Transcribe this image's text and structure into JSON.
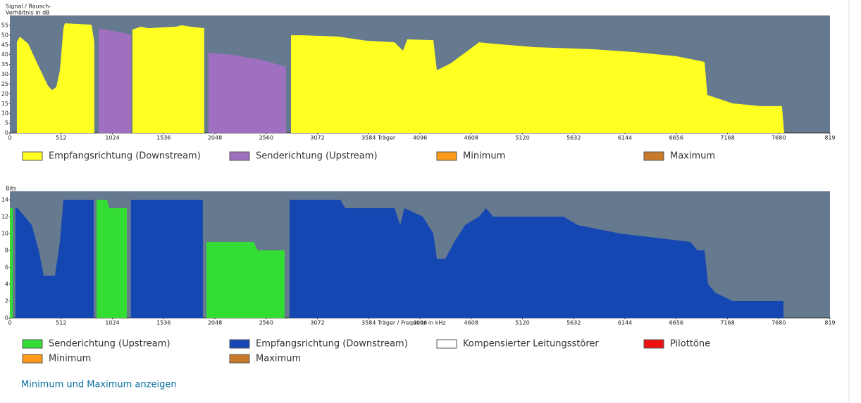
{
  "chart_data": [
    {
      "type": "area",
      "ylabel": [
        "Signal / Rausch-",
        "Verhältnis in dB"
      ],
      "xlabel": "Träger",
      "background": "#65798f",
      "xlim": [
        0,
        8192
      ],
      "xticks": [
        0,
        512,
        1024,
        1536,
        2048,
        2560,
        3072,
        3584,
        4096,
        4608,
        5120,
        5632,
        6144,
        6656,
        7168,
        7680,
        {
          "value": 8192,
          "label": "819"
        }
      ],
      "ylim": [
        0,
        60
      ],
      "yticks": [
        0,
        5,
        10,
        15,
        20,
        25,
        30,
        35,
        40,
        45,
        50,
        55
      ],
      "series": [
        {
          "name": "Empfangsrichtung (Downstream)",
          "color": "#ffff22",
          "x": [
            70,
            99,
            183,
            289,
            380,
            422,
            464,
            500,
            535,
            549,
            816,
            844,
            null,
            1224,
            1309,
            1379,
            1661,
            1717,
            1802,
            1942,
            null,
            2808,
            2927,
            3279,
            3561,
            3842,
            3927,
            3969,
            4230,
            4265,
            4405,
            4687,
            4827,
            5250,
            5813,
            6235,
            6657,
            6939,
            6967,
            7220,
            7501,
            7712,
            7734
          ],
          "values": [
            46.3,
            49.2,
            45.6,
            33.8,
            24.1,
            21.9,
            23.4,
            32,
            53.5,
            56,
            55.3,
            46.3,
            null,
            52.8,
            54.3,
            53.5,
            54.3,
            55,
            54.3,
            53.5,
            null,
            49.9,
            49.9,
            49.2,
            47.1,
            46.3,
            42,
            47.8,
            47.4,
            32,
            35.6,
            46.3,
            45.6,
            43.8,
            42.8,
            41.3,
            39.2,
            36.3,
            19.4,
            15.1,
            13.7,
            13.7,
            0
          ]
        },
        {
          "name": "Senderichtung (Upstream)",
          "color": "#a070c0",
          "x": [
            887,
            957,
            1168,
            1210,
            null,
            1984,
            2224,
            2505,
            2759
          ],
          "values": [
            53.5,
            52.8,
            50.7,
            49.9,
            null,
            41,
            39.9,
            37.4,
            33.8
          ]
        },
        {
          "name": "Minimum",
          "color": "#ff9a1a"
        },
        {
          "name": "Maximum",
          "color": "#c87a2a"
        }
      ]
    },
    {
      "type": "area",
      "ylabel": [
        "Bits"
      ],
      "xlabel": "Träger / Frequenz in kHz",
      "background": "#65798f",
      "xlim": [
        0,
        8192
      ],
      "xticks": [
        0,
        512,
        1024,
        1536,
        2048,
        2560,
        3072,
        3584,
        4096,
        4608,
        5120,
        5632,
        6144,
        6656,
        7168,
        7680,
        {
          "value": 8192,
          "label": "819"
        }
      ],
      "ylim": [
        0,
        15
      ],
      "yticks": [
        0,
        2,
        4,
        6,
        8,
        10,
        12,
        14
      ],
      "series": [
        {
          "name": "Senderichtung (Upstream)",
          "color": "#33dd33",
          "x": [
            0,
            28,
            null,
            866,
            971,
            992,
            1168,
            null,
            1963,
            1998,
            2435,
            2477,
            2744
          ],
          "values": [
            13,
            13,
            null,
            14,
            14,
            13,
            13,
            null,
            9,
            9,
            9,
            8,
            8
          ]
        },
        {
          "name": "Empfangsrichtung (Downstream)",
          "color": "#1547b3",
          "x": [
            56,
            77,
            148,
            218,
            289,
            338,
            380,
            450,
            500,
            535,
            570,
            816,
            837,
            null,
            1210,
            1928,
            null,
            2794,
            3300,
            3350,
            3842,
            3899,
            3941,
            4124,
            4230,
            4265,
            4349,
            4440,
            4546,
            4687,
            4757,
            4827,
            5531,
            5672,
            6094,
            6798,
            6868,
            6939,
            6974,
            7045,
            7220,
            7727
          ],
          "values": [
            13,
            13,
            12,
            11,
            8,
            5,
            5,
            5,
            9,
            14,
            14,
            14,
            14,
            null,
            14,
            14,
            null,
            14,
            14,
            13,
            13,
            11,
            13,
            12,
            10,
            7,
            7,
            9,
            11,
            12,
            13,
            12,
            12,
            11,
            10,
            9,
            8,
            8,
            4,
            3,
            2,
            2
          ]
        },
        {
          "name": "Kompensierter Leitungsstörer",
          "color": "#ffffff"
        },
        {
          "name": "Pilottöne",
          "color": "#ee1111"
        },
        {
          "name": "Minimum",
          "color": "#ff9a1a"
        },
        {
          "name": "Maximum",
          "color": "#c87a2a"
        }
      ]
    }
  ],
  "link": "Minimum und Maximum anzeigen"
}
